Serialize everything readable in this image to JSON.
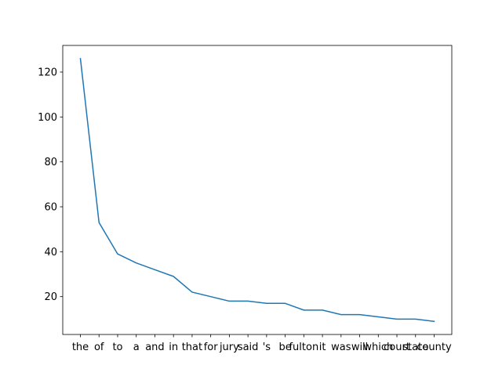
{
  "chart_data": {
    "type": "line",
    "title": "",
    "xlabel": "",
    "ylabel": "",
    "categories": [
      "the",
      "of",
      "to",
      "a",
      "and",
      "in",
      "that",
      "for",
      "jury",
      "said",
      "'s",
      "be",
      "fulton",
      "it",
      "was",
      "will",
      "which",
      "court",
      "state",
      "county"
    ],
    "series": [
      {
        "values": [
          126,
          53,
          39,
          35,
          32,
          29,
          22,
          20,
          18,
          18,
          17,
          17,
          14,
          14,
          12,
          12,
          11,
          10,
          10,
          9
        ],
        "color": "#1f77b4"
      }
    ],
    "ylim": [
      3.15,
      131.85
    ],
    "yticks": [
      20,
      40,
      60,
      80,
      100,
      120
    ],
    "grid": false,
    "legend": "none"
  }
}
